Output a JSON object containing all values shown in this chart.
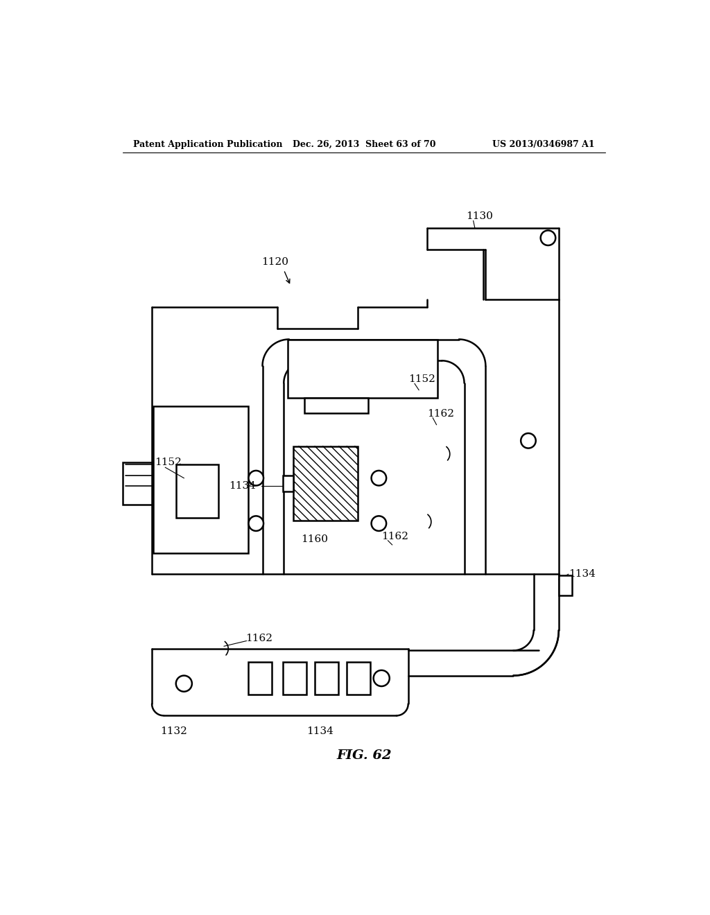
{
  "bg_color": "#ffffff",
  "line_color": "#000000",
  "lw": 1.8,
  "header_left": "Patent Application Publication",
  "header_mid": "Dec. 26, 2013  Sheet 63 of 70",
  "header_right": "US 2013/0346987 A1",
  "fig_label": "FIG. 62"
}
